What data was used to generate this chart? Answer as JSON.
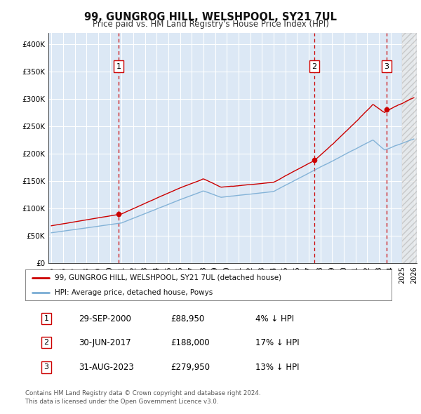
{
  "title": "99, GUNGROG HILL, WELSHPOOL, SY21 7UL",
  "subtitle": "Price paid vs. HM Land Registry's House Price Index (HPI)",
  "ylim": [
    0,
    420000
  ],
  "xlim_start": 1994.75,
  "xlim_end": 2026.25,
  "background_color": "#dce8f5",
  "grid_color": "#ffffff",
  "sale_markers": [
    {
      "year": 2000.75,
      "price": 88950,
      "label": "1"
    },
    {
      "year": 2017.5,
      "price": 188000,
      "label": "2"
    },
    {
      "year": 2023.67,
      "price": 279950,
      "label": "3"
    }
  ],
  "legend_entries": [
    {
      "color": "#cc0000",
      "label": "99, GUNGROG HILL, WELSHPOOL, SY21 7UL (detached house)"
    },
    {
      "color": "#6699cc",
      "label": "HPI: Average price, detached house, Powys"
    }
  ],
  "table_rows": [
    {
      "num": "1",
      "date": "29-SEP-2000",
      "price": "£88,950",
      "pct": "4% ↓ HPI"
    },
    {
      "num": "2",
      "date": "30-JUN-2017",
      "price": "£188,000",
      "pct": "17% ↓ HPI"
    },
    {
      "num": "3",
      "date": "31-AUG-2023",
      "price": "£279,950",
      "pct": "13% ↓ HPI"
    }
  ],
  "footer": "Contains HM Land Registry data © Crown copyright and database right 2024.\nThis data is licensed under the Open Government Licence v3.0.",
  "hpi_color": "#7aadd4",
  "sale_color": "#cc0000",
  "vline_color": "#cc0000",
  "marker_box_color": "#cc0000",
  "hatch_start": 2025.0
}
